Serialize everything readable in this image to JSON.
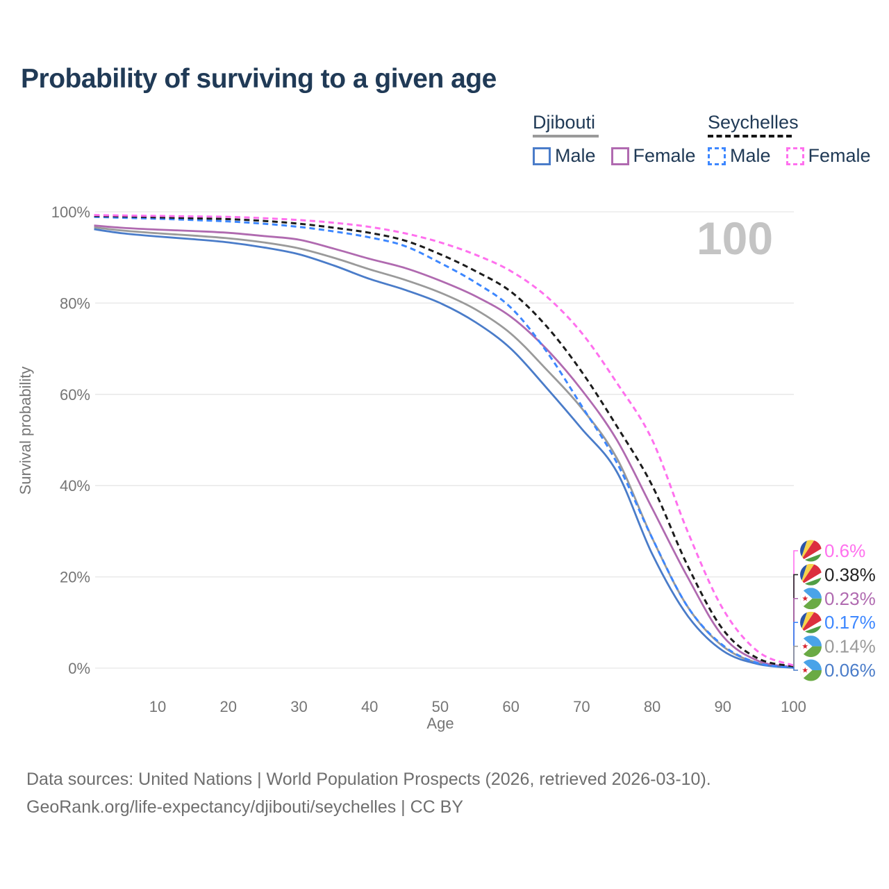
{
  "header": {
    "title": "Probability of surviving to a given age"
  },
  "legend": {
    "groups": [
      {
        "country": "Djibouti",
        "line_style": "solid",
        "line_color": "#9a9a9a",
        "items": [
          {
            "label": "Male",
            "color": "#4a7cc9",
            "line_style": "solid"
          },
          {
            "label": "Female",
            "color": "#b06ab0",
            "line_style": "solid"
          }
        ]
      },
      {
        "country": "Seychelles",
        "line_style": "dashed",
        "line_color": "#151515",
        "items": [
          {
            "label": "Male",
            "color": "#3d87ff",
            "line_style": "dashed"
          },
          {
            "label": "Female",
            "color": "#ff70ee",
            "line_style": "dashed"
          }
        ]
      }
    ]
  },
  "chart_data": {
    "type": "line",
    "title": "Probability of surviving to a given age",
    "xlabel": "Age",
    "ylabel": "Survival probability",
    "x_range": [
      1,
      100
    ],
    "y_range_percent": [
      0,
      100
    ],
    "grid": "horizontal-only",
    "legend_position": "top-right",
    "watermark": "100",
    "x_ticks": [
      {
        "value": 10,
        "label": "10"
      },
      {
        "value": 20,
        "label": "20"
      },
      {
        "value": 30,
        "label": "30"
      },
      {
        "value": 40,
        "label": "40"
      },
      {
        "value": 50,
        "label": "50"
      },
      {
        "value": 60,
        "label": "60"
      },
      {
        "value": 70,
        "label": "70"
      },
      {
        "value": 80,
        "label": "80"
      },
      {
        "value": 90,
        "label": "90"
      },
      {
        "value": 100,
        "label": "100"
      }
    ],
    "y_ticks": [
      {
        "value": 0,
        "label": "0%"
      },
      {
        "value": 20,
        "label": "20%"
      },
      {
        "value": 40,
        "label": "40%"
      },
      {
        "value": 60,
        "label": "60%"
      },
      {
        "value": 80,
        "label": "80%"
      },
      {
        "value": 100,
        "label": "100%"
      }
    ],
    "ages": [
      1,
      5,
      10,
      15,
      20,
      25,
      30,
      35,
      40,
      45,
      50,
      55,
      60,
      65,
      70,
      75,
      80,
      85,
      90,
      95,
      100
    ],
    "series": [
      {
        "name": "Djibouti — Both sexes",
        "country": "Djibouti",
        "sex": "Both sexes",
        "color": "#9a9a9a",
        "line_style": "solid",
        "end_value_label": "0.14%",
        "values": [
          96.6,
          95.9,
          95.3,
          94.8,
          94.2,
          93.3,
          92.0,
          89.9,
          87.4,
          85.1,
          82.3,
          78.6,
          73.3,
          65.5,
          57.0,
          46.0,
          28.5,
          13.5,
          4.8,
          1.1,
          0.14
        ]
      },
      {
        "name": "Djibouti — Female",
        "country": "Djibouti",
        "sex": "Female",
        "color": "#b06ab0",
        "line_style": "solid",
        "end_value_label": "0.23%",
        "values": [
          97.0,
          96.5,
          96.1,
          95.8,
          95.4,
          94.7,
          93.9,
          91.9,
          89.7,
          87.7,
          84.9,
          81.5,
          77.0,
          70.0,
          61.0,
          50.0,
          35.0,
          20.0,
          7.0,
          1.6,
          0.23
        ]
      },
      {
        "name": "Djibouti — Male",
        "country": "Djibouti",
        "sex": "Male",
        "color": "#4a7cc9",
        "line_style": "solid",
        "end_value_label": "0.06%",
        "values": [
          96.2,
          95.3,
          94.6,
          94.0,
          93.3,
          92.2,
          90.7,
          88.2,
          85.3,
          82.9,
          80.0,
          75.8,
          70.0,
          61.5,
          52.5,
          43.0,
          25.0,
          11.5,
          3.8,
          0.9,
          0.06
        ]
      },
      {
        "name": "Seychelles — Male",
        "country": "Seychelles",
        "sex": "Male",
        "color": "#3d87ff",
        "line_style": "dashed",
        "end_value_label": "0.17%",
        "values": [
          98.9,
          98.7,
          98.5,
          98.2,
          97.9,
          97.4,
          96.7,
          95.7,
          94.4,
          92.5,
          88.8,
          84.5,
          79.0,
          69.5,
          57.5,
          45.0,
          28.5,
          13.5,
          5.0,
          1.1,
          0.17
        ]
      },
      {
        "name": "Seychelles — Both sexes",
        "country": "Seychelles",
        "sex": "Both sexes",
        "color": "#1c1c1c",
        "line_style": "dashed",
        "end_value_label": "0.38%",
        "values": [
          99.1,
          99.0,
          98.8,
          98.6,
          98.4,
          98.0,
          97.4,
          96.5,
          95.4,
          93.7,
          90.7,
          87.0,
          82.5,
          75.0,
          65.0,
          53.0,
          40.0,
          22.5,
          8.5,
          2.1,
          0.38
        ]
      },
      {
        "name": "Seychelles — Female",
        "country": "Seychelles",
        "sex": "Female",
        "color": "#ff70ee",
        "line_style": "dashed",
        "end_value_label": "0.6%",
        "values": [
          99.3,
          99.2,
          99.1,
          99.0,
          98.9,
          98.6,
          98.2,
          97.6,
          96.7,
          95.3,
          93.3,
          90.6,
          87.0,
          81.5,
          73.5,
          62.5,
          50.0,
          30.0,
          13.0,
          3.6,
          0.6
        ]
      }
    ],
    "end_labels": [
      {
        "value": "0.6%",
        "country": "seychelles",
        "series": "Seychelles — Female",
        "color": "#ff70ee"
      },
      {
        "value": "0.38%",
        "country": "seychelles",
        "series": "Seychelles — Both sexes",
        "color": "#222222"
      },
      {
        "value": "0.23%",
        "country": "djibouti",
        "series": "Djibouti — Female",
        "color": "#b06ab0"
      },
      {
        "value": "0.17%",
        "country": "seychelles",
        "series": "Seychelles — Male",
        "color": "#3d87ff"
      },
      {
        "value": "0.14%",
        "country": "djibouti",
        "series": "Djibouti — Both sexes",
        "color": "#9a9a9a"
      },
      {
        "value": "0.06%",
        "country": "djibouti",
        "series": "Djibouti — Male",
        "color": "#4a7cc9"
      }
    ]
  },
  "footer": {
    "line1": "Data sources: United Nations | World Population Prospects (2026, retrieved 2026-03-10).",
    "line2": "GeoRank.org/life-expectancy/djibouti/seychelles | CC BY"
  }
}
